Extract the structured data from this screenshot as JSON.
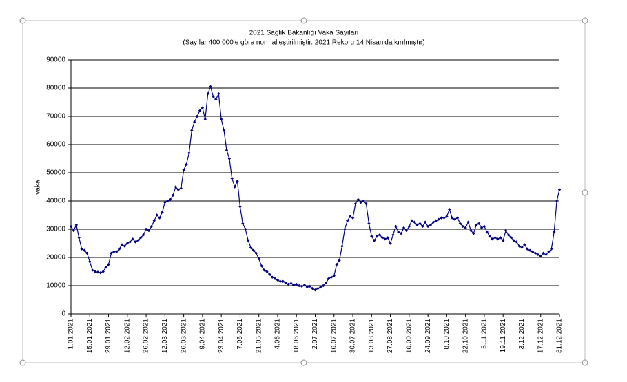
{
  "chart_data": {
    "type": "line",
    "title": "2021 Sağlık Bakanlığı Vaka Sayıları",
    "subtitle": "(Sayılar 400 000'e göre normalleştirilmiştir. 2021 Rekoru 14 Nisan'da kırılmıştır)",
    "y_label": "vaka",
    "color": "#000080",
    "grid": true,
    "ylim": [
      0,
      90000
    ],
    "yticks": [
      0,
      10000,
      20000,
      30000,
      40000,
      50000,
      60000,
      70000,
      80000,
      90000
    ],
    "categories": [
      "1.01.2021",
      null,
      null,
      null,
      null,
      null,
      null,
      "15.01.2021",
      null,
      null,
      null,
      null,
      null,
      null,
      "29.01.2021",
      null,
      null,
      null,
      null,
      null,
      null,
      "12.02.2021",
      null,
      null,
      null,
      null,
      null,
      null,
      "26.02.2021",
      null,
      null,
      null,
      null,
      null,
      null,
      "12.03.2021",
      null,
      null,
      null,
      null,
      null,
      null,
      "26.03.2021",
      null,
      null,
      null,
      null,
      null,
      null,
      "9.04.2021",
      null,
      null,
      null,
      null,
      null,
      null,
      "23.04.2021",
      null,
      null,
      null,
      null,
      null,
      null,
      "7.05.2021",
      null,
      null,
      null,
      null,
      null,
      null,
      "21.05.2021",
      null,
      null,
      null,
      null,
      null,
      null,
      "4.06.2021",
      null,
      null,
      null,
      null,
      null,
      null,
      "18.06.2021",
      null,
      null,
      null,
      null,
      null,
      null,
      "2.07.2021",
      null,
      null,
      null,
      null,
      null,
      null,
      "16.07.2021",
      null,
      null,
      null,
      null,
      null,
      null,
      "30.07.2021",
      null,
      null,
      null,
      null,
      null,
      null,
      "13.08.2021",
      null,
      null,
      null,
      null,
      null,
      null,
      "27.08.2021",
      null,
      null,
      null,
      null,
      null,
      null,
      "10.09.2021",
      null,
      null,
      null,
      null,
      null,
      null,
      "24.09.2021",
      null,
      null,
      null,
      null,
      null,
      null,
      "8.10.2021",
      null,
      null,
      null,
      null,
      null,
      null,
      "22.10.2021",
      null,
      null,
      null,
      null,
      null,
      null,
      "5.11.2021",
      null,
      null,
      null,
      null,
      null,
      null,
      "19.11.2021",
      null,
      null,
      null,
      null,
      null,
      null,
      "3.12.2021",
      null,
      null,
      null,
      null,
      null,
      null,
      "17.12.2021",
      null,
      null,
      null,
      null,
      null,
      null,
      "31.12.2021"
    ],
    "values": [
      31000,
      29500,
      31500,
      27000,
      23000,
      22500,
      21500,
      18500,
      15500,
      15000,
      14800,
      14600,
      15000,
      16500,
      17500,
      21500,
      22000,
      22000,
      23000,
      24500,
      24000,
      25000,
      25500,
      26500,
      25500,
      26000,
      27000,
      28000,
      30000,
      29500,
      31000,
      33000,
      35000,
      34000,
      36000,
      39500,
      40000,
      40500,
      42000,
      45000,
      44000,
      44500,
      51000,
      53000,
      57000,
      65000,
      68000,
      70000,
      72000,
      73000,
      69000,
      78000,
      80500,
      77000,
      76000,
      78000,
      69000,
      65000,
      58000,
      55000,
      48000,
      45000,
      47000,
      38000,
      32000,
      30000,
      26000,
      23500,
      22500,
      21500,
      19500,
      17000,
      15500,
      15000,
      14000,
      13000,
      12500,
      12000,
      11500,
      11500,
      11000,
      10500,
      10800,
      10200,
      10500,
      10000,
      9800,
      10200,
      9500,
      9800,
      9000,
      8500,
      9000,
      9500,
      10000,
      11000,
      12500,
      13000,
      13500,
      17500,
      19000,
      24000,
      30000,
      33000,
      34500,
      34000,
      39000,
      40500,
      39500,
      40000,
      39000,
      32000,
      27500,
      26000,
      27500,
      28000,
      27000,
      26500,
      27000,
      25000,
      28000,
      31000,
      29000,
      28500,
      30500,
      29500,
      31000,
      33000,
      32500,
      31500,
      32000,
      31000,
      32500,
      31000,
      31500,
      32500,
      33000,
      33500,
      34000,
      34000,
      34500,
      37000,
      34000,
      33500,
      34000,
      32000,
      31000,
      30500,
      32500,
      29500,
      28500,
      31500,
      32000,
      30500,
      31000,
      29000,
      27500,
      26500,
      27000,
      26500,
      27000,
      26000,
      29500,
      28000,
      27000,
      26000,
      25500,
      24000,
      23500,
      24500,
      23000,
      22500,
      22000,
      21500,
      21000,
      20500,
      21500,
      21000,
      22000,
      23000,
      29000,
      40000,
      44000
    ]
  }
}
